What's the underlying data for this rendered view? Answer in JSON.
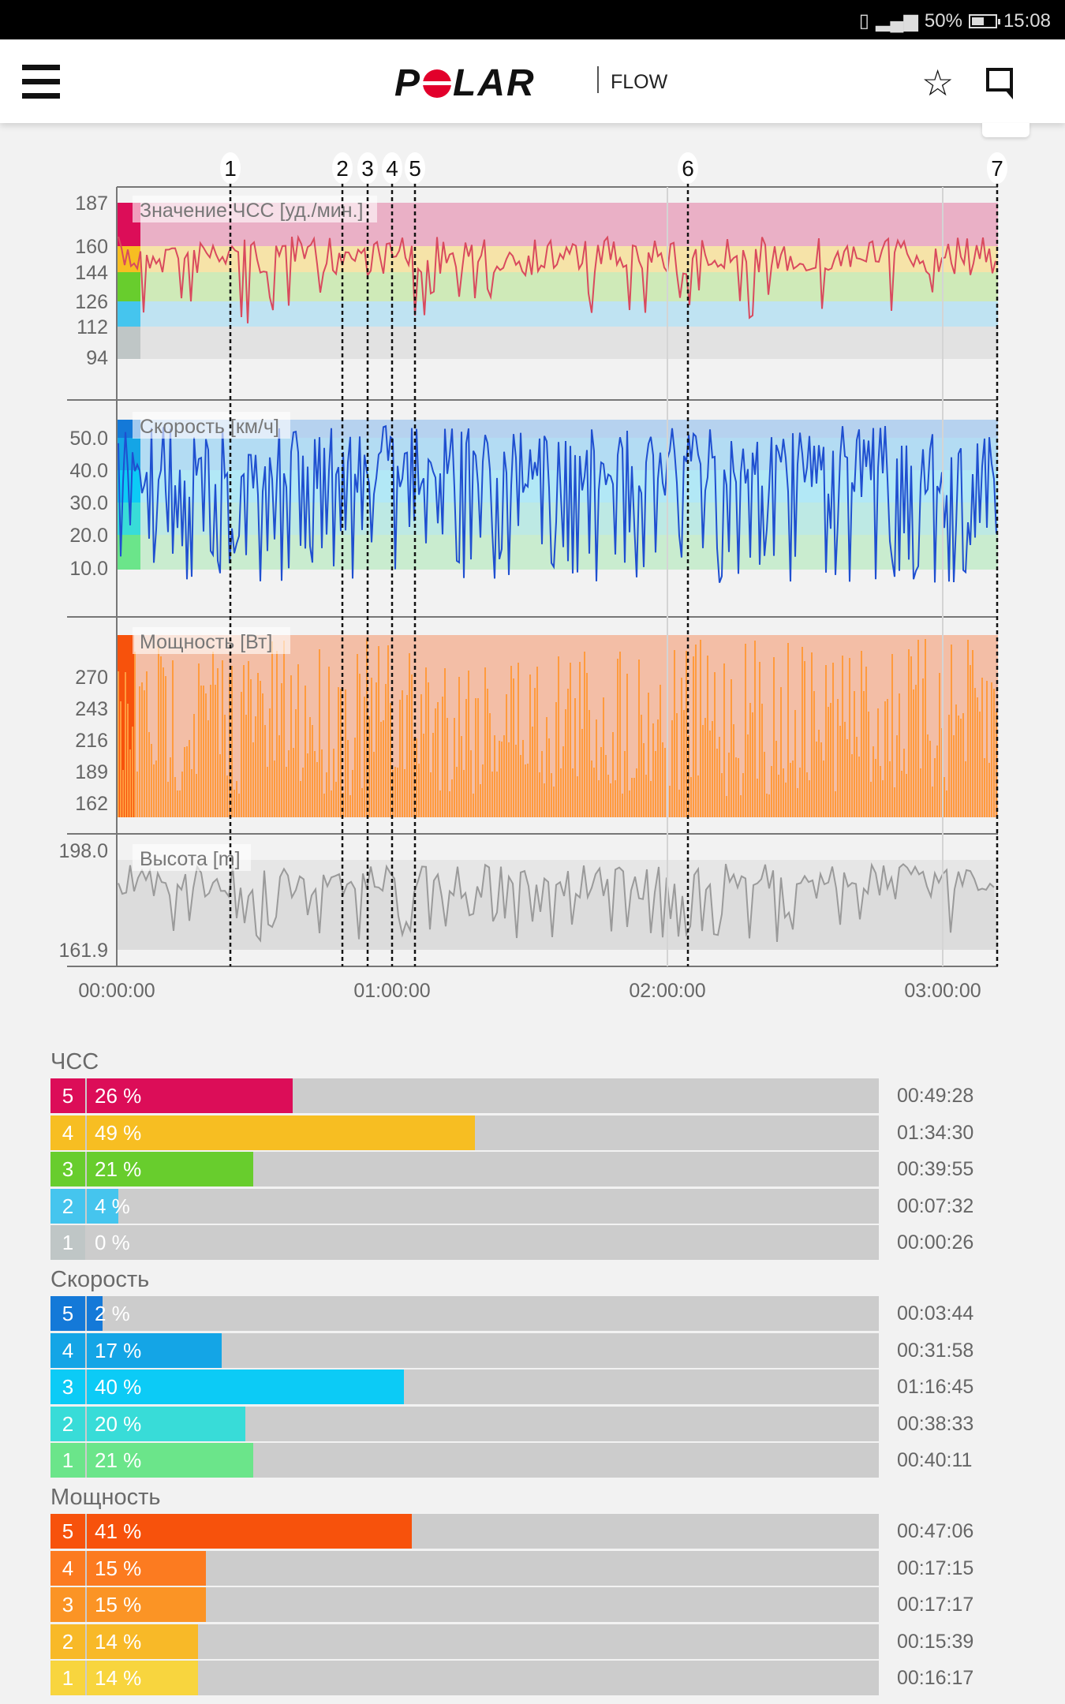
{
  "status_bar": {
    "battery": "50%",
    "time": "15:08"
  },
  "header": {
    "logo_text": "POLAR",
    "product": "FLOW"
  },
  "chart": {
    "markers": [
      "1",
      "2",
      "3",
      "4",
      "5",
      "6",
      "7"
    ],
    "panels": {
      "hr": {
        "title": "Значение ЧСС [уд./мин.]",
        "ticks": [
          "187",
          "160",
          "144",
          "126",
          "112",
          "94"
        ]
      },
      "speed": {
        "title": "Скорость [км/ч]",
        "ticks": [
          "50.0",
          "40.0",
          "30.0",
          "20.0",
          "10.0"
        ]
      },
      "power": {
        "title": "Мощность [Вт]",
        "ticks": [
          "270",
          "243",
          "216",
          "189",
          "162"
        ]
      },
      "altitude": {
        "title": "Высота [m]",
        "ticks": [
          "198.0",
          "161.9"
        ]
      }
    },
    "x_ticks": [
      "00:00:00",
      "01:00:00",
      "02:00:00",
      "03:00:00"
    ]
  },
  "zones": [
    {
      "title": "ЧСС",
      "rows": [
        {
          "zone": "5",
          "pct": 26,
          "pct_label": "26 %",
          "time": "00:49:28",
          "color": "#dc0d58"
        },
        {
          "zone": "4",
          "pct": 49,
          "pct_label": "49 %",
          "time": "01:34:30",
          "color": "#f7be22"
        },
        {
          "zone": "3",
          "pct": 21,
          "pct_label": "21 %",
          "time": "00:39:55",
          "color": "#68cd2d"
        },
        {
          "zone": "2",
          "pct": 4,
          "pct_label": "4 %",
          "time": "00:07:32",
          "color": "#45c5ee"
        },
        {
          "zone": "1",
          "pct": 0,
          "pct_label": "0 %",
          "time": "00:00:26",
          "color": "#bfc6c6"
        }
      ]
    },
    {
      "title": "Скорость",
      "rows": [
        {
          "zone": "5",
          "pct": 2,
          "pct_label": "2 %",
          "time": "00:03:44",
          "color": "#1479d8"
        },
        {
          "zone": "4",
          "pct": 17,
          "pct_label": "17 %",
          "time": "00:31:58",
          "color": "#14a5e6"
        },
        {
          "zone": "3",
          "pct": 40,
          "pct_label": "40 %",
          "time": "01:16:45",
          "color": "#0ccbf6"
        },
        {
          "zone": "2",
          "pct": 20,
          "pct_label": "20 %",
          "time": "00:38:33",
          "color": "#38dcd8"
        },
        {
          "zone": "1",
          "pct": 21,
          "pct_label": "21 %",
          "time": "00:40:11",
          "color": "#6be58a"
        }
      ]
    },
    {
      "title": "Мощность",
      "rows": [
        {
          "zone": "5",
          "pct": 41,
          "pct_label": "41 %",
          "time": "00:47:06",
          "color": "#f7520c"
        },
        {
          "zone": "4",
          "pct": 15,
          "pct_label": "15 %",
          "time": "00:17:15",
          "color": "#fc7b20"
        },
        {
          "zone": "3",
          "pct": 15,
          "pct_label": "15 %",
          "time": "00:17:17",
          "color": "#fb9425"
        },
        {
          "zone": "2",
          "pct": 14,
          "pct_label": "14 %",
          "time": "00:15:39",
          "color": "#f8b928"
        },
        {
          "zone": "1",
          "pct": 14,
          "pct_label": "14 %",
          "time": "00:16:17",
          "color": "#f8d53e"
        }
      ]
    }
  ]
}
